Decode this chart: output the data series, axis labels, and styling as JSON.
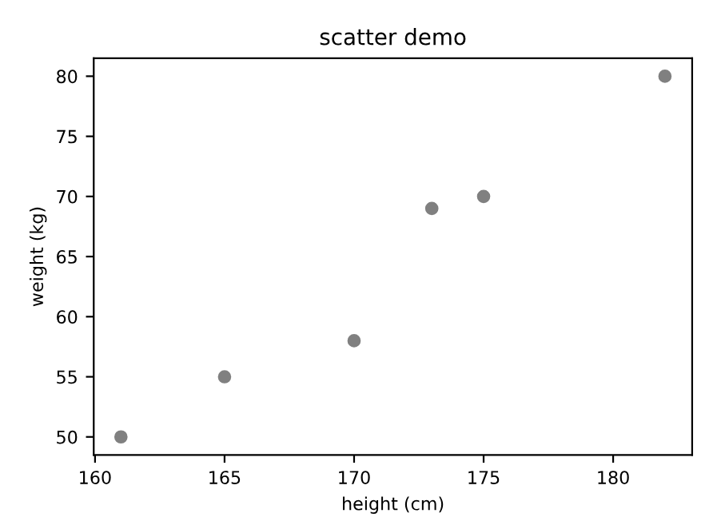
{
  "chart_data": {
    "type": "scatter",
    "title": "scatter demo",
    "xlabel": "height (cm)",
    "ylabel": "weight (kg)",
    "x": [
      161,
      165,
      170,
      173,
      175,
      182
    ],
    "series": [
      {
        "color": "#808080",
        "values": [
          50,
          55,
          58,
          69,
          70,
          80
        ]
      }
    ],
    "xlim": [
      159.95,
      183.05
    ],
    "ylim": [
      48.5,
      81.5
    ],
    "xticks": [
      160,
      165,
      170,
      175,
      180
    ],
    "yticks": [
      50,
      55,
      60,
      65,
      70,
      75,
      80
    ],
    "marker": "circle",
    "grid": false,
    "legend": false
  }
}
